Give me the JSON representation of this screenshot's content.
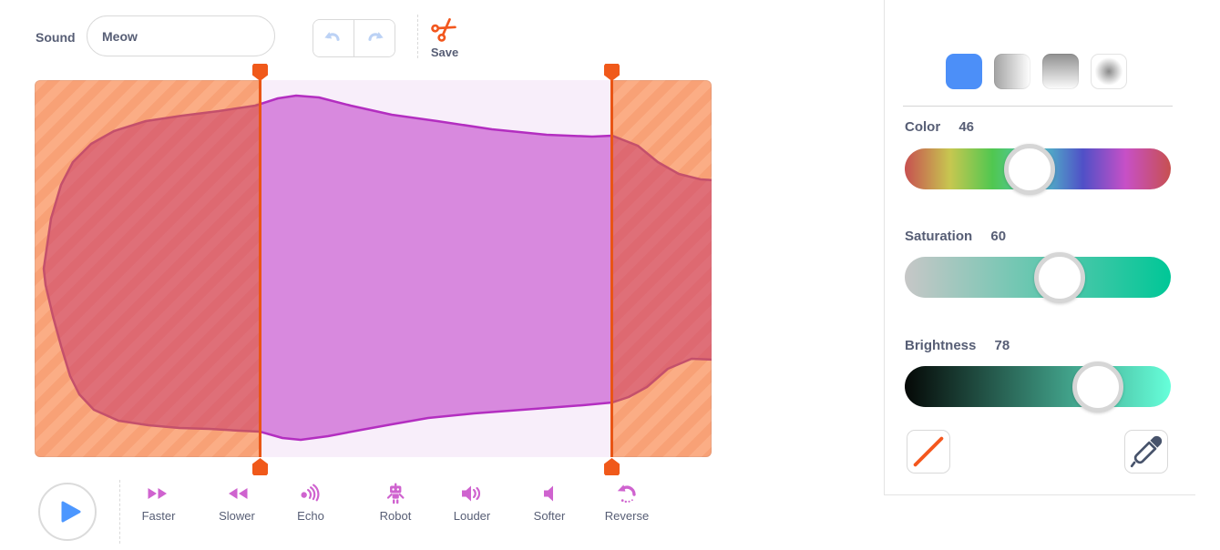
{
  "toolbar": {
    "sound_label": "Sound",
    "sound_name": "Meow",
    "save_label": "Save"
  },
  "playback": {
    "play_icon": "play-triangle-icon"
  },
  "effects": [
    {
      "id": "faster",
      "label": "Faster",
      "icon": "fast-forward-icon"
    },
    {
      "id": "slower",
      "label": "Slower",
      "icon": "rewind-icon"
    },
    {
      "id": "echo",
      "label": "Echo",
      "icon": "sound-waves-icon"
    },
    {
      "id": "robot",
      "label": "Robot",
      "icon": "robot-icon"
    },
    {
      "id": "louder",
      "label": "Louder",
      "icon": "speaker-loud-icon"
    },
    {
      "id": "softer",
      "label": "Softer",
      "icon": "speaker-icon"
    },
    {
      "id": "reverse",
      "label": "Reverse",
      "icon": "circular-arrow-icon"
    }
  ],
  "waveform": {
    "selection": {
      "left_handle": true,
      "right_handle": true
    },
    "regions": [
      "unselected-left",
      "selected-middle",
      "unselected-right"
    ]
  },
  "color_panel": {
    "fill_styles": [
      {
        "id": "solid",
        "selected": true
      },
      {
        "id": "gradient-horizontal",
        "selected": false
      },
      {
        "id": "gradient-vertical",
        "selected": false
      },
      {
        "id": "gradient-radial",
        "selected": false
      }
    ],
    "sliders": [
      {
        "id": "color",
        "label": "Color",
        "value": 46
      },
      {
        "id": "saturation",
        "label": "Saturation",
        "value": 60
      },
      {
        "id": "brightness",
        "label": "Brightness",
        "value": 78
      }
    ],
    "buttons": {
      "no_fill": "no-fill-diagonal-icon",
      "eyedropper": "eyedropper-icon"
    }
  },
  "colors": {
    "accent_blue": "#4C97FF",
    "trim_orange": "#F0591A",
    "effect_magenta": "#CF63CF",
    "text": "#575E75",
    "stripe_light": "#FBAD85",
    "stripe_dark": "#F8A176",
    "selection_bg": "#F8EEFA",
    "wave_fill_unselected": "rgba(201,60,110,0.55)",
    "wave_stroke_unselected": "#C4506B",
    "wave_fill_selected": "rgba(190,54,199,0.55)",
    "wave_stroke_selected": "#B32EC0",
    "saturation_gradient": [
      "#C7C7C7",
      "#00C797"
    ],
    "brightness_gradient": [
      "#050806",
      "#66FFDA"
    ]
  }
}
